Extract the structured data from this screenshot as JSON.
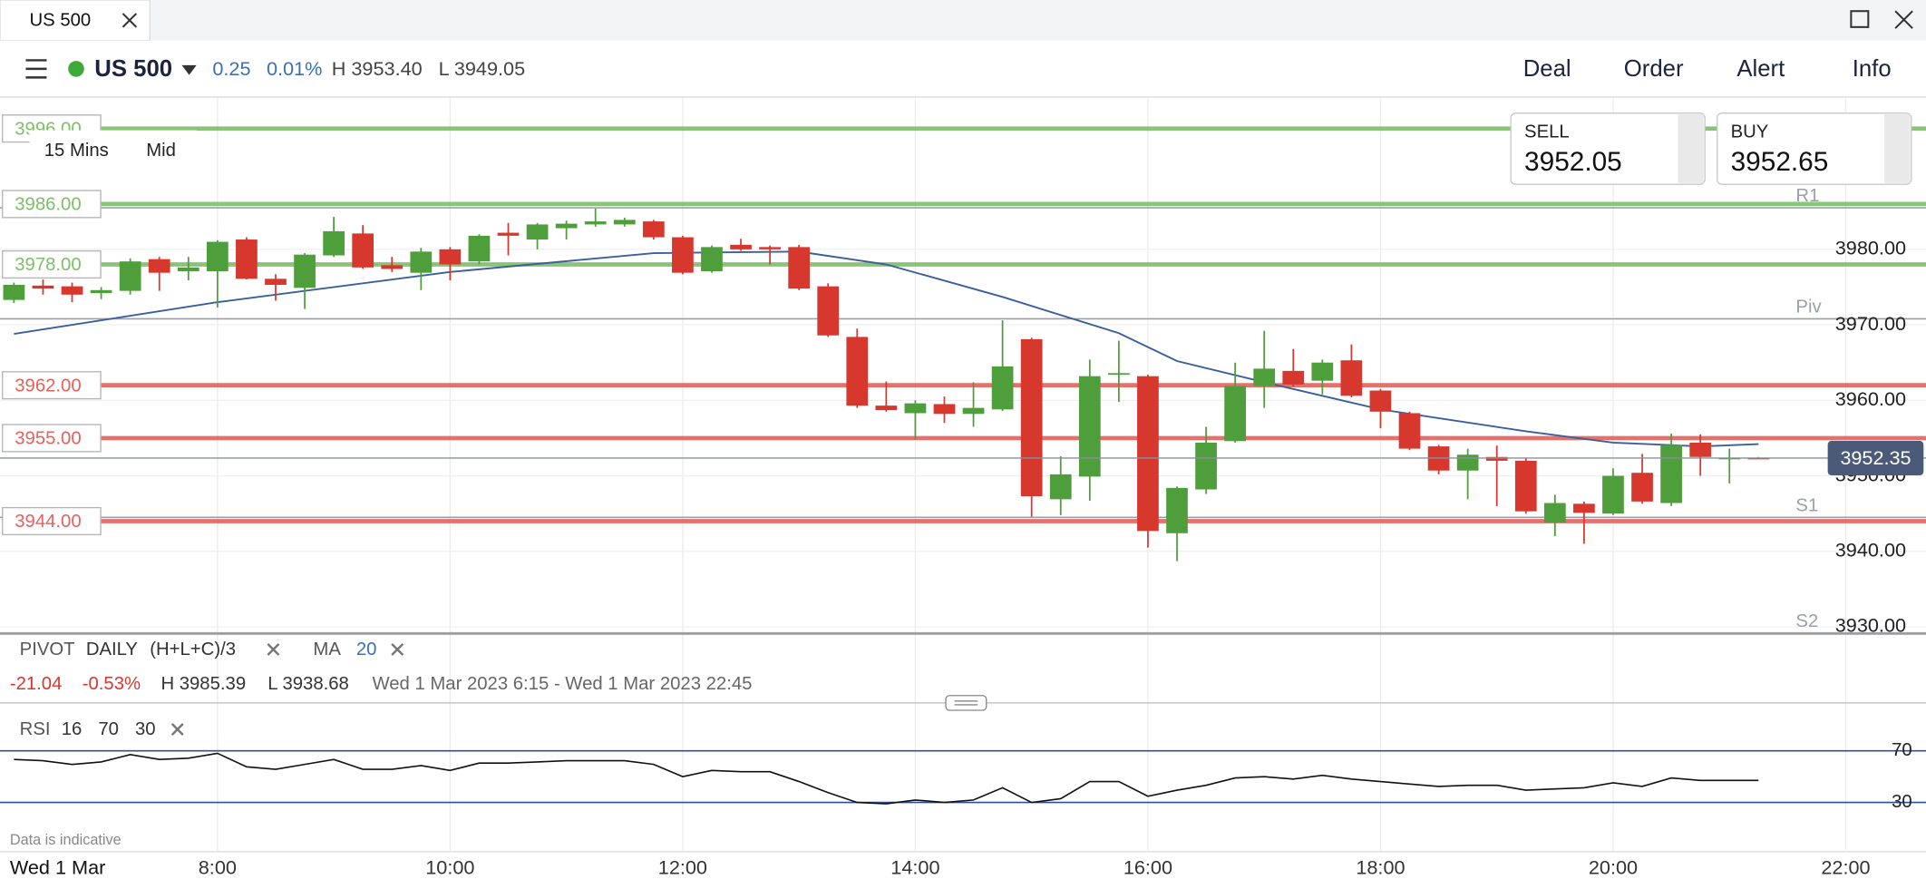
{
  "tab": {
    "title": "US 500"
  },
  "toolbar": {
    "instrument": "US 500",
    "change": "0.25",
    "change_pct": "0.01%",
    "high": "H 3953.40",
    "low": "L 3949.05",
    "actions": [
      "Deal",
      "Order",
      "Alert",
      "Info"
    ]
  },
  "chart_controls": {
    "interval": "15 Mins",
    "price_type": "Mid"
  },
  "quote": {
    "sell_label": "SELL",
    "sell": "3952.05",
    "buy_label": "BUY",
    "buy": "3952.65"
  },
  "legend": {
    "pivot": "PIVOT",
    "pivot_period": "DAILY",
    "pivot_formula": "(H+L+C)/3",
    "ma": "MA",
    "ma_period": "20"
  },
  "stats": {
    "change": "-21.04",
    "change_pct": "-0.53%",
    "high": "H 3985.39",
    "low": "L 3938.68",
    "range": "Wed 1 Mar 2023 6:15 - Wed 1 Mar 2023 22:45"
  },
  "rsi_legend": {
    "name": "RSI",
    "period": "16",
    "upper": "70",
    "lower": "30"
  },
  "footer": {
    "note": "Data is indicative",
    "date": "Wed 1 Mar"
  },
  "chart_data": [
    {
      "type": "candlestick",
      "x": [
        6.25,
        6.5,
        6.75,
        7,
        7.25,
        7.5,
        7.75,
        8,
        8.25,
        8.5,
        8.75,
        9,
        9.25,
        9.5,
        9.75,
        10,
        10.25,
        10.5,
        10.75,
        11,
        11.25,
        11.5,
        11.75,
        12,
        12.25,
        12.5,
        12.75,
        13,
        13.25,
        13.5,
        13.75,
        14,
        14.25,
        14.5,
        14.75,
        15,
        15.25,
        15.5,
        15.75,
        16,
        16.25,
        16.5,
        16.75,
        17,
        17.25,
        17.5,
        17.75,
        18,
        18.25,
        18.5,
        18.75,
        19,
        19.25,
        19.5,
        19.75,
        20,
        20.25,
        20.5,
        20.75,
        21,
        21.25
      ],
      "open": [
        3973.3,
        3975.2,
        3975.1,
        3974.2,
        3974.5,
        3978.7,
        3977.1,
        3977.1,
        3981.3,
        3976.1,
        3974.9,
        3979.2,
        3982.1,
        3977.9,
        3976.9,
        3980.0,
        3978.4,
        3982.2,
        3981.3,
        3982.8,
        3983.3,
        3983.3,
        3983.7,
        3981.6,
        3977.1,
        3980.6,
        3980.3,
        3980.3,
        3975.1,
        3968.4,
        3959.3,
        3958.3,
        3959.5,
        3958.2,
        3958.8,
        3968.1,
        3946.9,
        3949.9,
        3963.5,
        3963.2,
        3942.4,
        3948.2,
        3954.6,
        3961.9,
        3963.9,
        3962.6,
        3965.3,
        3961.3,
        3958.3,
        3953.9,
        3950.7,
        3952.5,
        3952.0,
        3943.8,
        3946.3,
        3945.0,
        3950.4,
        3946.4,
        3954.4,
        3952.3,
        3952.4
      ],
      "high": [
        3975.6,
        3976.0,
        3975.6,
        3975.0,
        3978.8,
        3979.0,
        3979.0,
        3981.2,
        3981.6,
        3976.7,
        3979.5,
        3984.3,
        3983.2,
        3979.0,
        3980.2,
        3980.3,
        3982.0,
        3983.5,
        3983.5,
        3983.8,
        3985.4,
        3984.2,
        3983.9,
        3981.8,
        3980.5,
        3981.4,
        3980.5,
        3980.6,
        3975.5,
        3969.5,
        3962.5,
        3960.0,
        3960.5,
        3962.4,
        3970.6,
        3968.3,
        3952.6,
        3965.4,
        3967.9,
        3963.4,
        3948.6,
        3956.5,
        3965.0,
        3969.2,
        3966.8,
        3965.4,
        3967.4,
        3961.5,
        3958.5,
        3954.1,
        3953.6,
        3954.0,
        3952.3,
        3947.5,
        3946.6,
        3951.0,
        3952.9,
        3955.6,
        3955.5,
        3953.6,
        3952.5
      ],
      "low": [
        3972.9,
        3974.0,
        3973.0,
        3973.4,
        3974.0,
        3974.5,
        3975.9,
        3972.3,
        3976.0,
        3973.2,
        3972.1,
        3979.0,
        3977.4,
        3977.0,
        3974.6,
        3975.9,
        3978.0,
        3979.2,
        3980.0,
        3981.3,
        3983.0,
        3983.0,
        3981.3,
        3976.7,
        3976.9,
        3979.8,
        3978.0,
        3974.6,
        3968.4,
        3959.0,
        3958.5,
        3954.8,
        3957.0,
        3956.5,
        3958.6,
        3944.6,
        3944.8,
        3946.7,
        3959.8,
        3940.5,
        3938.7,
        3947.6,
        3954.4,
        3959.0,
        3961.8,
        3960.8,
        3960.4,
        3956.3,
        3953.4,
        3950.2,
        3946.9,
        3946.0,
        3945.0,
        3942.0,
        3941.0,
        3944.8,
        3946.3,
        3946.0,
        3950.0,
        3949.0,
        3952.3
      ],
      "close": [
        3975.3,
        3974.8,
        3974.0,
        3974.6,
        3978.4,
        3976.9,
        3977.6,
        3981.0,
        3976.1,
        3975.3,
        3979.3,
        3982.4,
        3977.6,
        3977.4,
        3979.7,
        3978.0,
        3981.8,
        3981.8,
        3983.3,
        3983.4,
        3983.7,
        3983.9,
        3981.6,
        3976.9,
        3980.3,
        3980.0,
        3980.0,
        3974.8,
        3968.6,
        3959.3,
        3958.7,
        3959.6,
        3958.2,
        3959.0,
        3964.5,
        3947.3,
        3950.2,
        3963.2,
        3963.6,
        3942.7,
        3948.4,
        3954.4,
        3961.9,
        3964.2,
        3962.1,
        3965.0,
        3960.6,
        3958.5,
        3953.6,
        3950.7,
        3952.8,
        3952.0,
        3945.3,
        3946.4,
        3945.1,
        3950.0,
        3946.6,
        3954.1,
        3952.5,
        3952.4,
        3952.35
      ],
      "up_color": "#4f9e3c",
      "down_color": "#d7382e",
      "xlim": [
        6.13,
        22.69
      ],
      "xticks": [
        {
          "value": 8,
          "label": "8:00"
        },
        {
          "value": 10,
          "label": "10:00"
        },
        {
          "value": 12,
          "label": "12:00"
        },
        {
          "value": 14,
          "label": "14:00"
        },
        {
          "value": 16,
          "label": "16:00"
        },
        {
          "value": 18,
          "label": "18:00"
        },
        {
          "value": 20,
          "label": "20:00"
        },
        {
          "value": 22,
          "label": "22:00"
        }
      ],
      "ylim": [
        3929.2,
        4000
      ],
      "yticks": [
        {
          "value": 3930,
          "label": "3930.00"
        },
        {
          "value": 3940,
          "label": "3940.00"
        },
        {
          "value": 3950,
          "label": "3950.00"
        },
        {
          "value": 3960,
          "label": "3960.00"
        },
        {
          "value": 3970,
          "label": "3970.00"
        },
        {
          "value": 3980,
          "label": "3980.00"
        }
      ],
      "grid": true,
      "current": {
        "value": 3952.35,
        "label": "3952.35"
      },
      "levels": [
        {
          "value": 3996,
          "label": "3996.00",
          "color": "#7cbf68"
        },
        {
          "value": 3986,
          "label": "3986.00",
          "color": "#7cbf68"
        },
        {
          "value": 3978,
          "label": "3978.00",
          "color": "#7cbf68"
        },
        {
          "value": 3962,
          "label": "3962.00",
          "color": "#e2625c"
        },
        {
          "value": 3955,
          "label": "3955.00",
          "color": "#e2625c"
        },
        {
          "value": 3944,
          "label": "3944.00",
          "color": "#e2625c"
        }
      ],
      "pivots": [
        {
          "name": "R1",
          "value": 3985.5
        },
        {
          "name": "Piv",
          "value": 3970.8
        },
        {
          "name": "S1",
          "value": 3944.5
        },
        {
          "name": "S2",
          "value": 3929.2
        }
      ],
      "pivot_color": "#9aa0aa",
      "ma": {
        "x": [
          6.25,
          8,
          10,
          11.75,
          13,
          13.75,
          14.75,
          15.75,
          16.25,
          17,
          18,
          19.25,
          20,
          20.75,
          21.25
        ],
        "values": [
          3968.8,
          3973.0,
          3977.0,
          3979.5,
          3979.7,
          3978.0,
          3973.7,
          3968.9,
          3965.2,
          3962.4,
          3958.8,
          3955.9,
          3954.4,
          3953.9,
          3954.2
        ],
        "color": "#3b5f9c"
      }
    },
    {
      "type": "line",
      "x": [
        6.25,
        6.5,
        6.75,
        7,
        7.25,
        7.5,
        7.75,
        8,
        8.25,
        8.5,
        8.75,
        9,
        9.25,
        9.5,
        9.75,
        10,
        10.25,
        10.5,
        10.75,
        11,
        11.25,
        11.5,
        11.75,
        12,
        12.25,
        12.5,
        12.75,
        13,
        13.25,
        13.5,
        13.75,
        14,
        14.25,
        14.5,
        14.75,
        15,
        15.25,
        15.5,
        15.75,
        16,
        16.25,
        16.5,
        16.75,
        17,
        17.25,
        17.5,
        17.75,
        18,
        18.25,
        18.5,
        18.75,
        19,
        19.25,
        19.5,
        19.75,
        20,
        20.25,
        20.5,
        20.75,
        21,
        21.25
      ],
      "values": [
        63.3,
        62.4,
        59.5,
        61.4,
        67.1,
        63.3,
        64.3,
        68.1,
        57.6,
        55.7,
        59.5,
        63.3,
        55.7,
        55.7,
        58.6,
        54.8,
        60.5,
        60.5,
        61.4,
        62.4,
        62.4,
        62.4,
        59.5,
        50.0,
        54.8,
        53.8,
        53.8,
        46.2,
        37.6,
        30.0,
        29.0,
        31.9,
        30.0,
        31.9,
        41.4,
        30.0,
        32.9,
        46.2,
        46.2,
        34.8,
        39.5,
        43.3,
        49.0,
        50.0,
        48.1,
        51.0,
        48.1,
        46.2,
        44.3,
        42.4,
        43.3,
        43.3,
        39.5,
        40.5,
        41.4,
        45.2,
        42.4,
        49.0,
        47.1,
        47.1,
        47.1
      ],
      "color": "#111111",
      "xlim": [
        6.13,
        22.69
      ],
      "ylim": [
        10,
        100
      ],
      "yticks": [
        30,
        70
      ],
      "tick_color": "#2f4f8f"
    }
  ]
}
